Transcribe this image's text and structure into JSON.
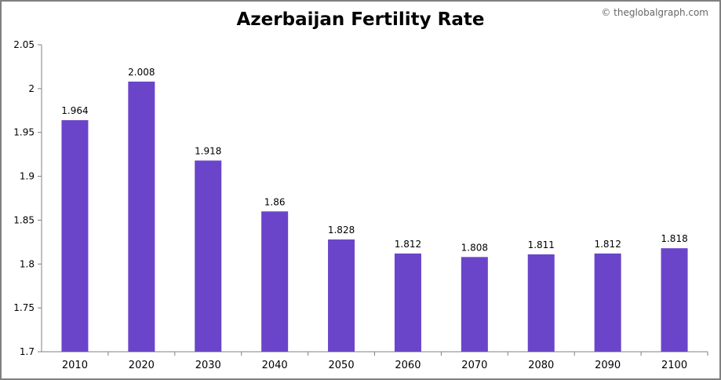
{
  "title": "Azerbaijan Fertility Rate",
  "watermark": "© theglobalgraph.com",
  "colors": {
    "bar": "#6A45C9",
    "axis": "#808080",
    "text": "#000000"
  },
  "chart_data": {
    "type": "bar",
    "title": "Azerbaijan Fertility Rate",
    "xlabel": "",
    "ylabel": "",
    "categories": [
      "2010",
      "2020",
      "2030",
      "2040",
      "2050",
      "2060",
      "2070",
      "2080",
      "2090",
      "2100"
    ],
    "values": [
      1.964,
      2.008,
      1.918,
      1.86,
      1.828,
      1.812,
      1.808,
      1.811,
      1.812,
      1.818
    ],
    "value_labels": [
      "1.964",
      "2.008",
      "1.918",
      "1.86",
      "1.828",
      "1.812",
      "1.808",
      "1.811",
      "1.812",
      "1.818"
    ],
    "ylim": [
      1.7,
      2.05
    ],
    "yticks": [
      1.7,
      1.75,
      1.8,
      1.85,
      1.9,
      1.95,
      2,
      2.05
    ],
    "ytick_labels": [
      "1.7",
      "1.75",
      "1.8",
      "1.85",
      "1.9",
      "1.95",
      "2",
      "2.05"
    ],
    "grid": false,
    "legend": "none"
  }
}
